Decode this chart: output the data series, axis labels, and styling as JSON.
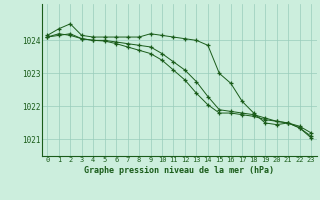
{
  "title": "Graphe pression niveau de la mer (hPa)",
  "background_color": "#cceedd",
  "grid_color": "#99ccbb",
  "line_color": "#1a5c1a",
  "ylim": [
    1020.5,
    1025.1
  ],
  "yticks": [
    1021,
    1022,
    1023,
    1024
  ],
  "xlim": [
    -0.5,
    23.5
  ],
  "xticks": [
    0,
    1,
    2,
    3,
    4,
    5,
    6,
    7,
    8,
    9,
    10,
    11,
    12,
    13,
    14,
    15,
    16,
    17,
    18,
    19,
    20,
    21,
    22,
    23
  ],
  "series1": [
    1024.15,
    1024.35,
    1024.5,
    1024.15,
    1024.1,
    1024.1,
    1024.1,
    1024.1,
    1024.1,
    1024.2,
    1024.15,
    1024.1,
    1024.05,
    1024.0,
    1023.85,
    1023.0,
    1022.7,
    1022.15,
    1021.8,
    1021.5,
    1021.45,
    1021.5,
    1021.4,
    1021.2
  ],
  "series2": [
    1024.1,
    1024.2,
    1024.15,
    1024.05,
    1024.0,
    1024.0,
    1023.95,
    1023.9,
    1023.85,
    1023.8,
    1023.6,
    1023.35,
    1023.1,
    1022.75,
    1022.3,
    1021.9,
    1021.85,
    1021.8,
    1021.75,
    1021.65,
    1021.55,
    1021.5,
    1021.35,
    1021.1
  ],
  "series3": [
    1024.1,
    1024.15,
    1024.2,
    1024.05,
    1024.0,
    1023.98,
    1023.9,
    1023.8,
    1023.7,
    1023.6,
    1023.4,
    1023.1,
    1022.8,
    1022.4,
    1022.05,
    1021.8,
    1021.8,
    1021.75,
    1021.7,
    1021.6,
    1021.55,
    1021.5,
    1021.35,
    1021.05
  ]
}
